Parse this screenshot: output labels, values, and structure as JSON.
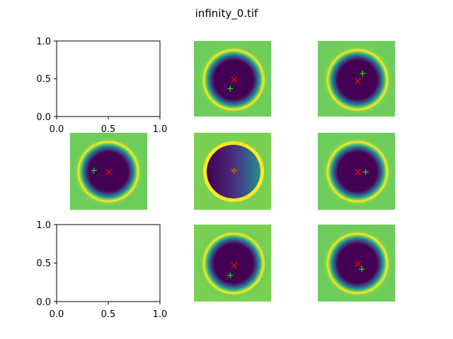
{
  "figure": {
    "title": "infinity_0.tif"
  },
  "colors": {
    "background": "#ffffff",
    "axis": "#000000",
    "red_marker": "#ff0000",
    "green_marker": "#00ff00",
    "viridis_dark": "#440154",
    "viridis_mid": "#3b528b",
    "viridis_teal": "#21918c",
    "viridis_green": "#5ec962",
    "viridis_yellow": "#fde725"
  },
  "chart_data": [
    {
      "type": "empty-axes",
      "position": "row1-col1",
      "xlim": [
        0,
        1
      ],
      "ylim": [
        0,
        1
      ],
      "xticks": [
        "0.0",
        "0.5",
        "1.0"
      ],
      "yticks": [
        "0.0",
        "0.5",
        "1.0"
      ]
    },
    {
      "type": "heatmap",
      "position": "row1-col2",
      "markers": {
        "red": [
          0.52,
          0.51
        ],
        "green": [
          0.47,
          0.63
        ]
      }
    },
    {
      "type": "heatmap",
      "position": "row1-col3",
      "markers": {
        "red": [
          0.52,
          0.53
        ],
        "green": [
          0.58,
          0.43
        ]
      }
    },
    {
      "type": "heatmap",
      "position": "row2-col1",
      "markers": {
        "red": [
          0.5,
          0.51
        ],
        "green": [
          0.31,
          0.49
        ]
      }
    },
    {
      "type": "heatmap",
      "position": "row2-col2",
      "variant": "skewed",
      "markers": {
        "red": [
          0.52,
          0.49
        ],
        "green": [
          0.52,
          0.49
        ]
      }
    },
    {
      "type": "heatmap",
      "position": "row2-col3",
      "markers": {
        "red": [
          0.52,
          0.51
        ],
        "green": [
          0.62,
          0.51
        ]
      }
    },
    {
      "type": "empty-axes",
      "position": "row3-col1",
      "xlim": [
        0,
        1
      ],
      "ylim": [
        0,
        1
      ],
      "xticks": [
        "0.0",
        "0.5",
        "1.0"
      ],
      "yticks": [
        "0.0",
        "0.5",
        "1.0"
      ]
    },
    {
      "type": "heatmap",
      "position": "row3-col2",
      "markers": {
        "red": [
          0.52,
          0.53
        ],
        "green": [
          0.47,
          0.66
        ]
      }
    },
    {
      "type": "heatmap",
      "position": "row3-col3",
      "markers": {
        "red": [
          0.52,
          0.51
        ],
        "green": [
          0.57,
          0.58
        ]
      }
    }
  ]
}
